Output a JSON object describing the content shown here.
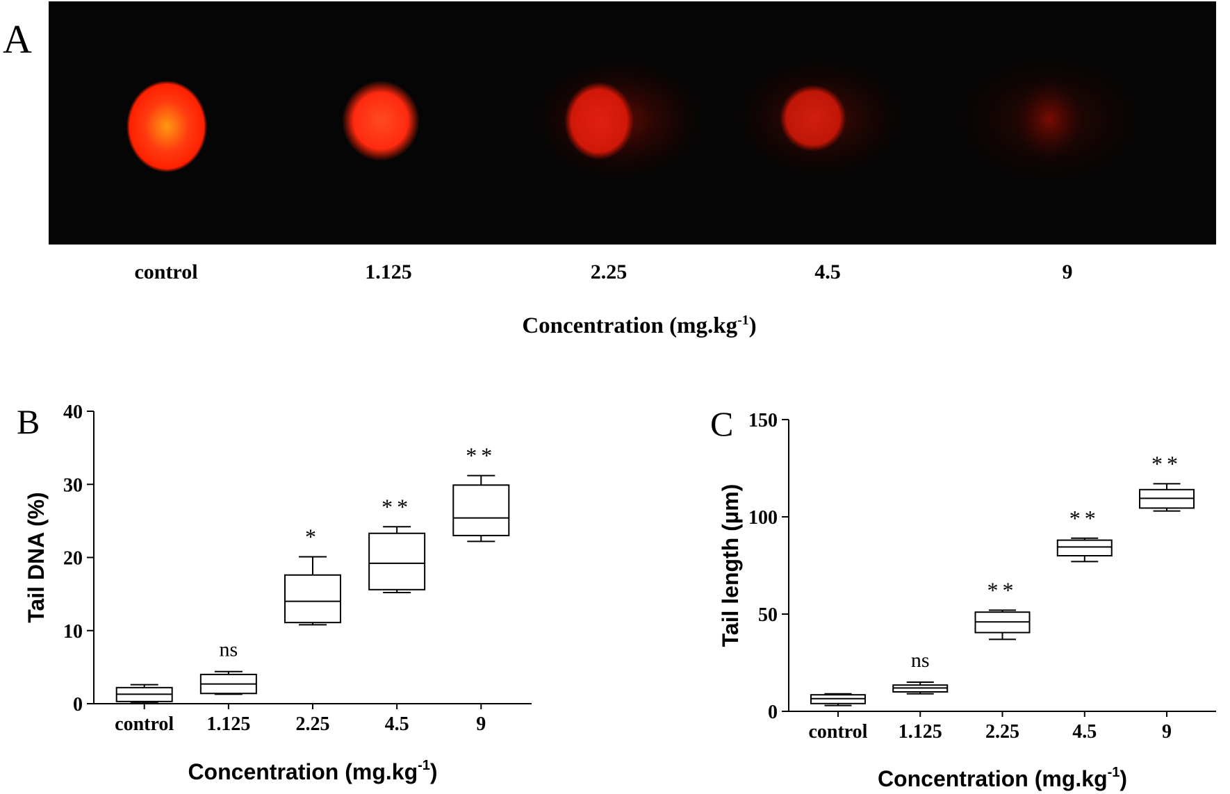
{
  "panels": {
    "a": {
      "letter": "A",
      "labels": [
        "control",
        "1.125",
        "2.25",
        "4.5",
        "9"
      ],
      "xlabel": "Concentration (mg.kg",
      "xlabel_sup": "-1",
      "xlabel_end": ")"
    },
    "b": {
      "letter": "B"
    },
    "c": {
      "letter": "C"
    }
  },
  "chart_data": [
    {
      "type": "box",
      "panel": "B",
      "categories": [
        "control",
        "1.125",
        "2.25",
        "4.5",
        "9"
      ],
      "ylabel": "Tail DNA (%)",
      "xlabel": "Concentration (mg.kg",
      "xlabel_sup": "-1",
      "xlabel_end": ")",
      "ylim": [
        0,
        40
      ],
      "yticks": [
        0,
        10,
        20,
        30,
        40
      ],
      "boxes": [
        {
          "min": 0.2,
          "q1": 0.3,
          "median": 1.3,
          "q3": 2.2,
          "max": 2.6,
          "annotation": ""
        },
        {
          "min": 1.3,
          "q1": 1.4,
          "median": 2.7,
          "q3": 4.0,
          "max": 4.4,
          "annotation": "ns"
        },
        {
          "min": 10.8,
          "q1": 11.1,
          "median": 14.0,
          "q3": 17.6,
          "max": 20.1,
          "annotation": "*"
        },
        {
          "min": 15.2,
          "q1": 15.6,
          "median": 19.2,
          "q3": 23.3,
          "max": 24.2,
          "annotation": "**"
        },
        {
          "min": 22.2,
          "q1": 23.0,
          "median": 25.4,
          "q3": 29.9,
          "max": 31.2,
          "annotation": "**"
        }
      ]
    },
    {
      "type": "box",
      "panel": "C",
      "categories": [
        "control",
        "1.125",
        "2.25",
        "4.5",
        "9"
      ],
      "ylabel": "Tail length (µm)",
      "xlabel": "Concentration (mg.kg",
      "xlabel_sup": "-1",
      "xlabel_end": ")",
      "ylim": [
        0,
        150
      ],
      "yticks": [
        0,
        50,
        100,
        150
      ],
      "boxes": [
        {
          "min": 3,
          "q1": 4,
          "median": 6.5,
          "q3": 8.5,
          "max": 9,
          "annotation": ""
        },
        {
          "min": 9,
          "q1": 10,
          "median": 12,
          "q3": 13.5,
          "max": 15,
          "annotation": "ns"
        },
        {
          "min": 37,
          "q1": 40.5,
          "median": 46,
          "q3": 51,
          "max": 52,
          "annotation": "**"
        },
        {
          "min": 77,
          "q1": 80,
          "median": 84.5,
          "q3": 88,
          "max": 89,
          "annotation": "**"
        },
        {
          "min": 103,
          "q1": 104.5,
          "median": 109.5,
          "q3": 114,
          "max": 117,
          "annotation": "**"
        }
      ]
    }
  ]
}
